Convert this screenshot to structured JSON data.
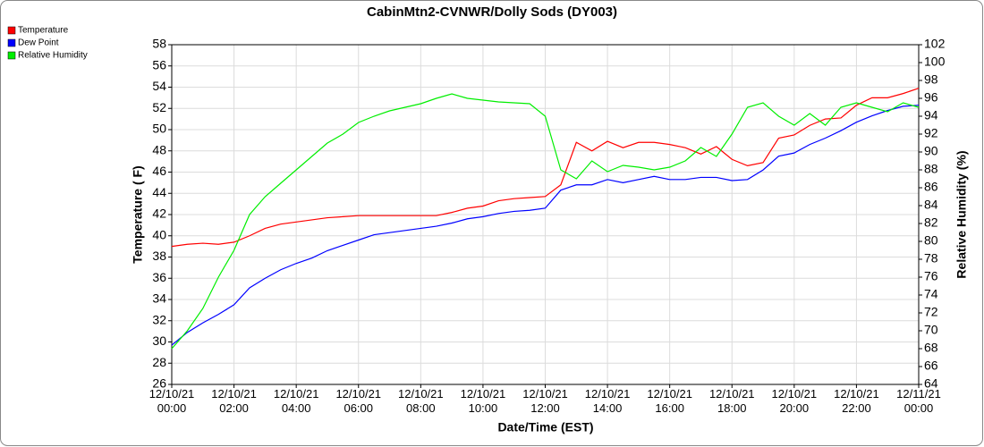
{
  "chart_data": {
    "type": "line",
    "title": "CabinMtn2-CVNWR/Dolly Sods (DY003)",
    "xlabel": "Date/Time (EST)",
    "ylabel": "Temperature ( F)",
    "y2label": "Relative Humidity (%)",
    "x": [
      "12/10/21 00:00",
      "12/10/21 00:30",
      "12/10/21 01:00",
      "12/10/21 01:30",
      "12/10/21 02:00",
      "12/10/21 02:30",
      "12/10/21 03:00",
      "12/10/21 03:30",
      "12/10/21 04:00",
      "12/10/21 04:30",
      "12/10/21 05:00",
      "12/10/21 05:30",
      "12/10/21 06:00",
      "12/10/21 06:30",
      "12/10/21 07:00",
      "12/10/21 07:30",
      "12/10/21 08:00",
      "12/10/21 08:30",
      "12/10/21 09:00",
      "12/10/21 09:30",
      "12/10/21 10:00",
      "12/10/21 10:30",
      "12/10/21 11:00",
      "12/10/21 11:30",
      "12/10/21 12:00",
      "12/10/21 12:30",
      "12/10/21 13:00",
      "12/10/21 13:30",
      "12/10/21 14:00",
      "12/10/21 14:30",
      "12/10/21 15:00",
      "12/10/21 15:30",
      "12/10/21 16:00",
      "12/10/21 16:30",
      "12/10/21 17:00",
      "12/10/21 17:30",
      "12/10/21 18:00",
      "12/10/21 18:30",
      "12/10/21 19:00",
      "12/10/21 19:30",
      "12/10/21 20:00",
      "12/10/21 20:30",
      "12/10/21 21:00",
      "12/10/21 21:30",
      "12/10/21 22:00",
      "12/10/21 22:30",
      "12/10/21 23:00",
      "12/10/21 23:30",
      "12/11/21 00:00"
    ],
    "series": [
      {
        "name": "Temperature",
        "color": "#ff0000",
        "values": [
          39.0,
          39.2,
          39.3,
          39.2,
          39.4,
          40.0,
          40.7,
          41.1,
          41.3,
          41.5,
          41.7,
          41.8,
          41.9,
          41.9,
          41.9,
          41.9,
          41.9,
          41.9,
          42.2,
          42.6,
          42.8,
          43.3,
          43.5,
          43.6,
          43.7,
          44.8,
          48.8,
          48.0,
          48.9,
          48.3,
          48.8,
          48.8,
          48.6,
          48.3,
          47.7,
          48.4,
          47.2,
          46.6,
          46.9,
          49.2,
          49.5,
          50.4,
          51.0,
          51.1,
          52.3,
          53.0,
          53.0,
          53.4,
          53.9
        ]
      },
      {
        "name": "Dew Point",
        "color": "#0000ff",
        "values": [
          29.7,
          30.9,
          31.8,
          32.6,
          33.5,
          35.1,
          36.0,
          36.8,
          37.4,
          37.9,
          38.6,
          39.1,
          39.6,
          40.1,
          40.3,
          40.5,
          40.7,
          40.9,
          41.2,
          41.6,
          41.8,
          42.1,
          42.3,
          42.4,
          42.6,
          44.3,
          44.8,
          44.8,
          45.3,
          45.0,
          45.3,
          45.6,
          45.3,
          45.3,
          45.5,
          45.5,
          45.2,
          45.3,
          46.2,
          47.5,
          47.8,
          48.6,
          49.2,
          49.9,
          50.7,
          51.3,
          51.8,
          52.2,
          52.3
        ]
      },
      {
        "name": "Relative Humidity",
        "color": "#00ee00",
        "axis": "y2",
        "values": [
          68,
          70,
          72.5,
          76,
          79,
          83,
          85,
          86.5,
          88,
          89.5,
          91,
          92,
          93.3,
          94,
          94.6,
          95,
          95.4,
          96,
          96.5,
          96,
          95.8,
          95.6,
          95.5,
          95.4,
          94,
          88,
          87,
          89,
          87.8,
          88.5,
          88.3,
          88,
          88.3,
          89,
          90.5,
          89.5,
          92,
          95,
          95.5,
          94,
          93,
          94.3,
          93,
          95,
          95.5,
          95,
          94.5,
          95.5,
          95
        ]
      }
    ],
    "xlim": [
      "12/10/21 00:00",
      "12/11/21 00:00"
    ],
    "xticks": [
      "12/10/21 00:00",
      "12/10/21 02:00",
      "12/10/21 04:00",
      "12/10/21 06:00",
      "12/10/21 08:00",
      "12/10/21 10:00",
      "12/10/21 12:00",
      "12/10/21 14:00",
      "12/10/21 16:00",
      "12/10/21 18:00",
      "12/10/21 20:00",
      "12/10/21 22:00",
      "12/11/21 00:00"
    ],
    "ylim": [
      26,
      58
    ],
    "yticks": [
      26,
      28,
      30,
      32,
      34,
      36,
      38,
      40,
      42,
      44,
      46,
      48,
      50,
      52,
      54,
      56,
      58
    ],
    "y2lim": [
      64,
      102
    ],
    "y2ticks": [
      64,
      66,
      68,
      70,
      72,
      74,
      76,
      78,
      80,
      82,
      84,
      86,
      88,
      90,
      92,
      94,
      96,
      98,
      100,
      102
    ],
    "grid": true,
    "legend": "top-left"
  }
}
